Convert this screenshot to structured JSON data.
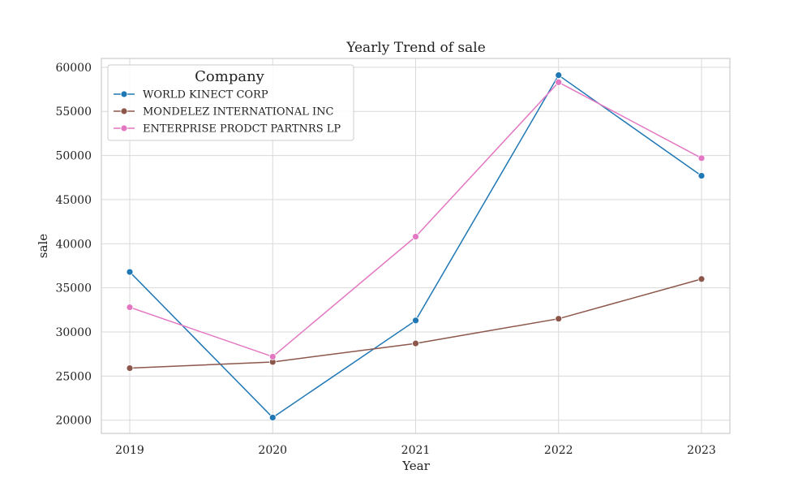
{
  "chart_data": {
    "type": "line",
    "title": "Yearly Trend of sale",
    "xlabel": "Year",
    "ylabel": "sale",
    "categories": [
      "2019",
      "2020",
      "2021",
      "2022",
      "2023"
    ],
    "ylim": [
      18500,
      61000
    ],
    "yticks": [
      20000,
      25000,
      30000,
      35000,
      40000,
      45000,
      50000,
      55000,
      60000
    ],
    "grid": true,
    "legend": {
      "title": "Company",
      "placement": "top-left"
    },
    "series": [
      {
        "name": "WORLD KINECT CORP",
        "color": "#1f77b4",
        "values": [
          36800,
          20300,
          31300,
          59100,
          47700
        ]
      },
      {
        "name": "MONDELEZ INTERNATIONAL INC",
        "color": "#8c564b",
        "values": [
          25900,
          26600,
          28700,
          31500,
          36000
        ]
      },
      {
        "name": "ENTERPRISE PRODCT PARTNRS LP",
        "color": "#e377c2",
        "values": [
          32800,
          27200,
          40800,
          58300,
          49700
        ]
      }
    ]
  }
}
